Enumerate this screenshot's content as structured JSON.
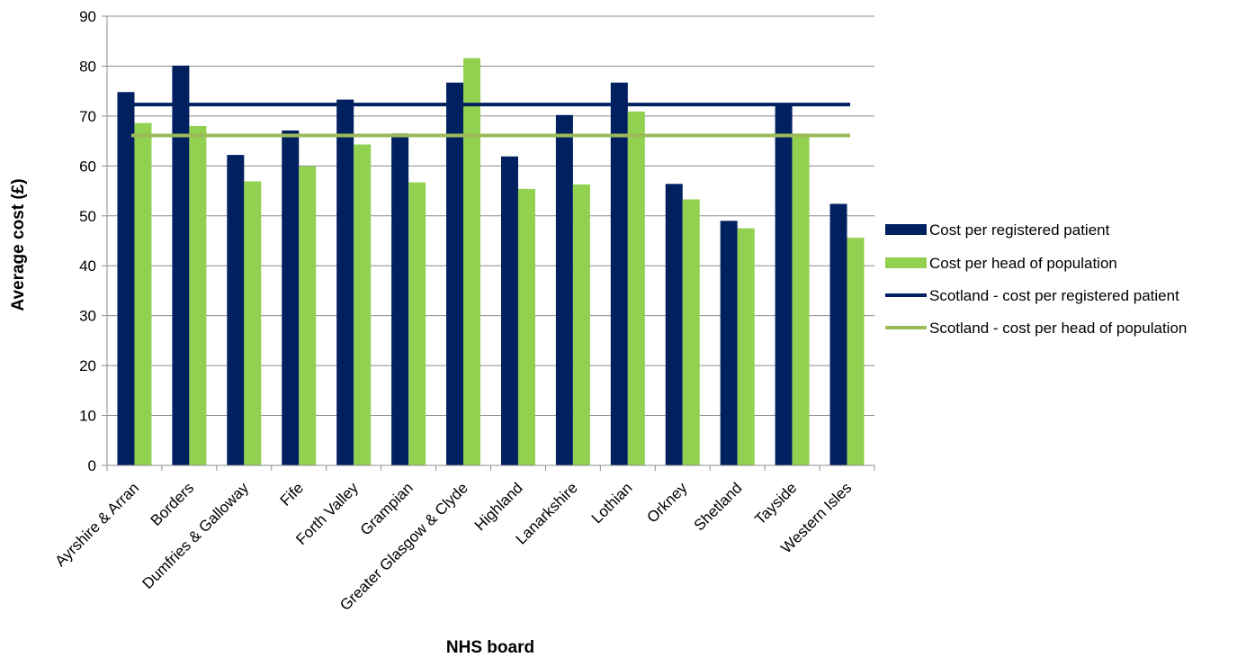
{
  "chart_data": {
    "type": "bar",
    "xlabel": "NHS board",
    "ylabel": "Average cost (£)",
    "ylim": [
      0,
      90
    ],
    "yticks": [
      0,
      10,
      20,
      30,
      40,
      50,
      60,
      70,
      80,
      90
    ],
    "grid": true,
    "legend_position": "right",
    "categories": [
      "Ayrshire & Arran",
      "Borders",
      "Dumfries & Galloway",
      "Fife",
      "Forth Valley",
      "Grampian",
      "Greater Glasgow & Clyde",
      "Highland",
      "Lanarkshire",
      "Lothian",
      "Orkney",
      "Shetland",
      "Tayside",
      "Western Isles"
    ],
    "series": [
      {
        "name": "Cost per registered patient",
        "kind": "bar",
        "color": "#002060",
        "values": [
          74.8,
          80.1,
          62.2,
          67.1,
          73.3,
          66.5,
          76.7,
          61.9,
          70.2,
          76.7,
          56.4,
          49.0,
          72.5,
          52.4
        ]
      },
      {
        "name": "Cost per head of population",
        "kind": "bar",
        "color": "#92D050",
        "values": [
          68.6,
          68.0,
          56.9,
          59.9,
          64.3,
          56.7,
          81.6,
          55.4,
          56.3,
          70.9,
          53.3,
          47.5,
          66.5,
          45.6
        ]
      },
      {
        "name": "Scotland - cost per registered patient",
        "kind": "line",
        "color": "#002060",
        "value": 72.3
      },
      {
        "name": "Scotland - cost per head of population",
        "kind": "line",
        "color": "#9BBB59",
        "value": 66.1
      }
    ]
  }
}
